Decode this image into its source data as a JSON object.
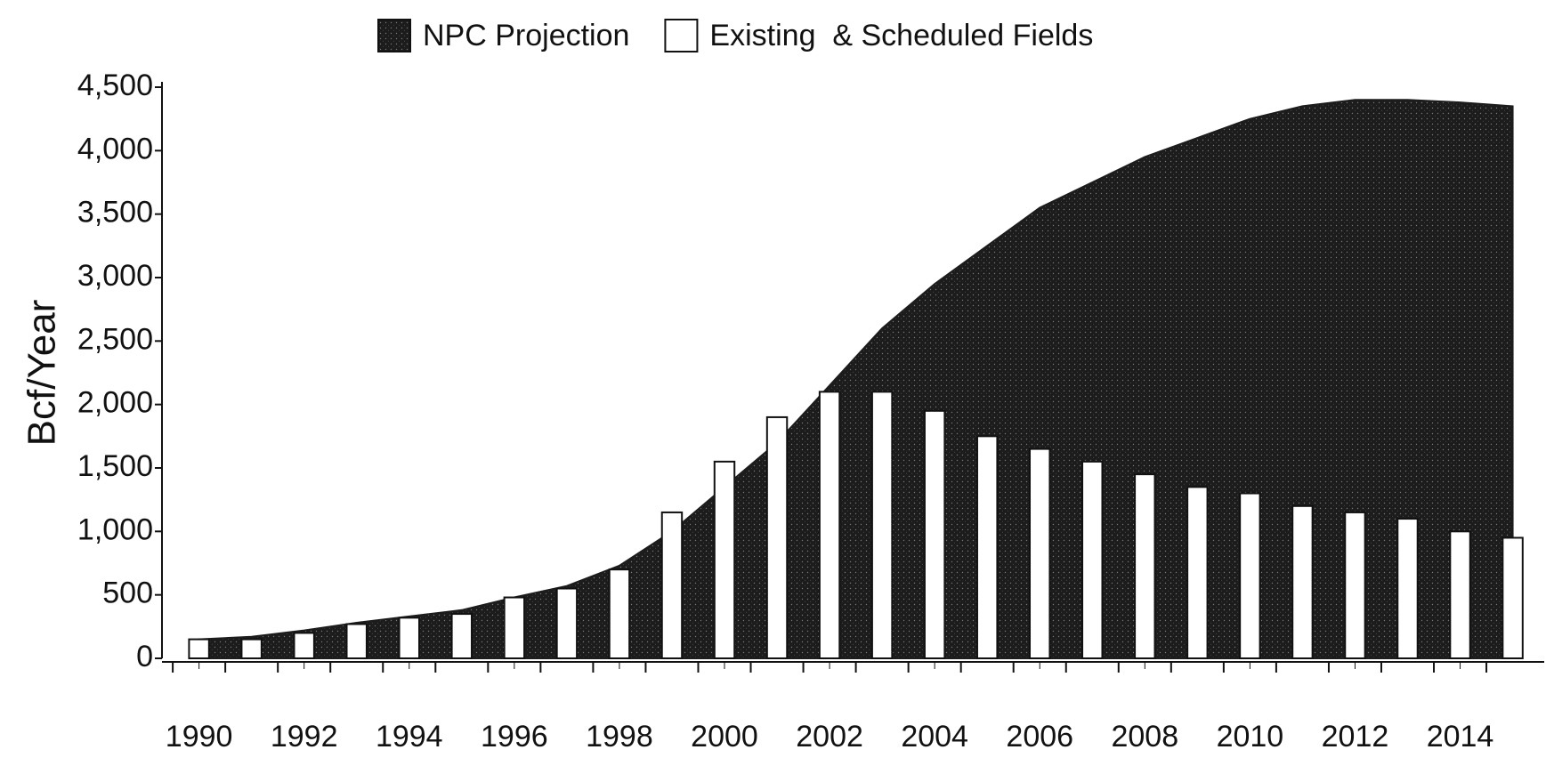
{
  "chart_data": {
    "type": "bar",
    "y_label": "Bcf/Year",
    "x": [
      1990,
      1991,
      1992,
      1993,
      1994,
      1995,
      1996,
      1997,
      1998,
      1999,
      2000,
      2001,
      2002,
      2003,
      2004,
      2005,
      2006,
      2007,
      2008,
      2009,
      2010,
      2011,
      2012,
      2013,
      2014,
      2015
    ],
    "xlim": [
      1989.6,
      2015.6
    ],
    "xticks": [
      1990,
      1992,
      1994,
      1996,
      1998,
      2000,
      2002,
      2004,
      2006,
      2008,
      2010,
      2012,
      2014
    ],
    "ylim": [
      0,
      4500
    ],
    "yticks": [
      0,
      500,
      {
        "value": 1000,
        "label": "1,000"
      },
      {
        "value": 1500,
        "label": "1,500"
      },
      {
        "value": 2000,
        "label": "2,000"
      },
      {
        "value": 2500,
        "label": "2,500"
      },
      {
        "value": 3000,
        "label": "3,000"
      },
      {
        "value": 3500,
        "label": "3,500"
      },
      {
        "value": 4000,
        "label": "4,000"
      },
      {
        "value": 4500,
        "label": "4,500"
      }
    ],
    "grid": false,
    "legend": "top",
    "series": [
      {
        "name": "NPC Projection",
        "type": "area",
        "color": "#1c1c1c",
        "values": [
          150,
          170,
          220,
          280,
          330,
          380,
          480,
          570,
          730,
          1000,
          1350,
          1700,
          2150,
          2600,
          2950,
          3250,
          3550,
          3750,
          3950,
          4100,
          4250,
          4350,
          4400,
          4400,
          4380,
          4350
        ]
      },
      {
        "name": "Existing  & Scheduled Fields",
        "type": "bar",
        "color": "#ffffff",
        "values": [
          150,
          150,
          200,
          270,
          320,
          350,
          480,
          550,
          700,
          1150,
          1550,
          1900,
          2100,
          2100,
          1950,
          1750,
          1650,
          1550,
          1450,
          1350,
          1300,
          1200,
          1150,
          1100,
          1000,
          950
        ]
      }
    ]
  }
}
